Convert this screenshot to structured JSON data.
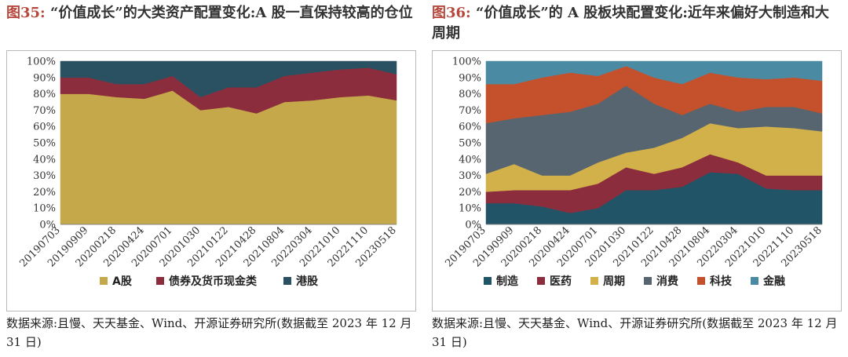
{
  "left": {
    "figure_label": "图35:",
    "title": "“价值成长”的大类资产配置变化:A 股一直保持较高的仓位",
    "source": "数据来源:且慢、天天基金、Wind、开源证券研究所(数据截至 2023 年 12 月 31 日)"
  },
  "right": {
    "figure_label": "图36:",
    "title": "“价值成长”的 A 股板块配置变化:近年来偏好大制造和大周期",
    "source": "数据来源:且慢、天天基金、Wind、开源证券研究所(数据截至 2023 年 12 月 31 日)"
  },
  "chart_data": [
    {
      "type": "area",
      "stacked": true,
      "categories": [
        "20190703",
        "20190909",
        "20200218",
        "20200424",
        "20200701",
        "20201030",
        "20210122",
        "20210428",
        "20210804",
        "20220304",
        "20221010",
        "20221110",
        "20230518"
      ],
      "yticks": [
        "0%",
        "10%",
        "20%",
        "30%",
        "40%",
        "50%",
        "60%",
        "70%",
        "80%",
        "90%",
        "100%"
      ],
      "ylim": [
        0,
        100
      ],
      "legend_position": "bottom",
      "series": [
        {
          "name": "A股",
          "color": "#c4a84a",
          "values": [
            80,
            80,
            78,
            77,
            82,
            70,
            72,
            68,
            75,
            76,
            78,
            79,
            76
          ]
        },
        {
          "name": "债券及货币现金类",
          "color": "#8b2d3c",
          "values": [
            10,
            10,
            8,
            9,
            9,
            8,
            12,
            16,
            16,
            17,
            17,
            17,
            16
          ]
        },
        {
          "name": "港股",
          "color": "#2a5161",
          "values": [
            10,
            10,
            14,
            14,
            9,
            22,
            16,
            16,
            9,
            7,
            5,
            4,
            8
          ]
        }
      ]
    },
    {
      "type": "area",
      "stacked": true,
      "categories": [
        "20190703",
        "20190909",
        "20200218",
        "20200424",
        "20200701",
        "20201030",
        "20210122",
        "20210428",
        "20210804",
        "20220304",
        "20221010",
        "20221110",
        "20230518"
      ],
      "yticks": [
        "0%",
        "10%",
        "20%",
        "30%",
        "40%",
        "50%",
        "60%",
        "70%",
        "80%",
        "90%",
        "100%"
      ],
      "ylim": [
        0,
        100
      ],
      "legend_position": "bottom",
      "series": [
        {
          "name": "制造",
          "color": "#215466",
          "values": [
            13,
            13,
            11,
            7,
            10,
            21,
            21,
            23,
            32,
            31,
            22,
            21,
            21
          ]
        },
        {
          "name": "医药",
          "color": "#8b2d3c",
          "values": [
            7,
            8,
            10,
            14,
            15,
            14,
            10,
            12,
            11,
            7,
            8,
            9,
            9
          ]
        },
        {
          "name": "周期",
          "color": "#d2b04a",
          "values": [
            11,
            16,
            9,
            9,
            13,
            9,
            16,
            18,
            19,
            21,
            30,
            29,
            27
          ]
        },
        {
          "name": "消费",
          "color": "#566570",
          "values": [
            31,
            28,
            37,
            39,
            36,
            41,
            27,
            14,
            12,
            10,
            12,
            13,
            11
          ]
        },
        {
          "name": "科技",
          "color": "#c4502c",
          "values": [
            24,
            21,
            23,
            24,
            17,
            12,
            16,
            19,
            19,
            21,
            17,
            18,
            20
          ]
        },
        {
          "name": "金融",
          "color": "#4a8aa3",
          "values": [
            14,
            14,
            10,
            7,
            9,
            3,
            10,
            14,
            7,
            10,
            11,
            10,
            12
          ]
        }
      ]
    }
  ]
}
